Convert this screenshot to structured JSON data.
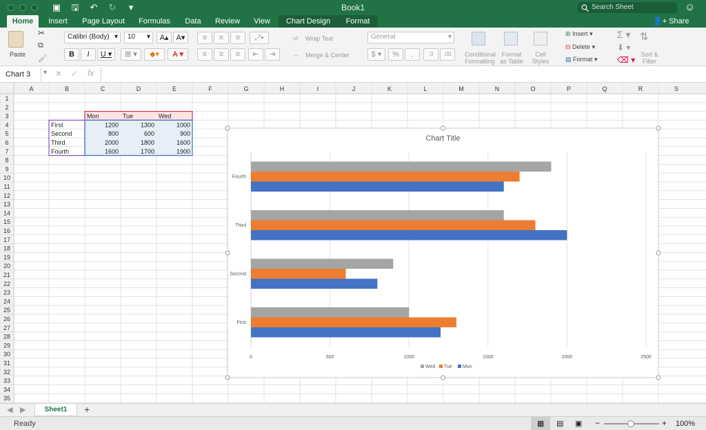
{
  "window": {
    "title": "Book1",
    "search_placeholder": "Search Sheet"
  },
  "tabs": [
    "Home",
    "Insert",
    "Page Layout",
    "Formulas",
    "Data",
    "Review",
    "View",
    "Chart Design",
    "Format"
  ],
  "share_label": "Share",
  "ribbon": {
    "paste": "Paste",
    "font": "Calibri (Body)",
    "size": "10",
    "wrap": "Wrap Text",
    "merge": "Merge & Center",
    "number_format": "General",
    "cond_format": [
      "Conditional",
      "Formatting"
    ],
    "format_table": [
      "Format",
      "as Table"
    ],
    "cell_styles": [
      "Cell",
      "Styles"
    ],
    "insert": "Insert",
    "delete": "Delete",
    "format": "Format",
    "sort": [
      "Sort &",
      "Filter"
    ]
  },
  "name_box": "Chart 3",
  "fx": "fx",
  "columns": [
    "A",
    "B",
    "C",
    "D",
    "E",
    "F",
    "G",
    "H",
    "I",
    "J",
    "K",
    "L",
    "M",
    "N",
    "O",
    "P",
    "Q",
    "R",
    "S"
  ],
  "rows": [
    "1",
    "2",
    "3",
    "4",
    "5",
    "6",
    "7",
    "8",
    "9",
    "10",
    "11",
    "12",
    "13",
    "14",
    "15",
    "16",
    "17",
    "18",
    "19",
    "20",
    "21",
    "22",
    "23",
    "24",
    "25",
    "26",
    "27",
    "28",
    "29",
    "30",
    "31",
    "32",
    "33",
    "34",
    "35"
  ],
  "table": {
    "headers": [
      "Mon",
      "Tue",
      "Wed"
    ],
    "rows": [
      {
        "label": "First",
        "values": [
          "1200",
          "1300",
          "1000"
        ]
      },
      {
        "label": "Second",
        "values": [
          "800",
          "600",
          "900"
        ]
      },
      {
        "label": "Third",
        "values": [
          "2000",
          "1800",
          "1600"
        ]
      },
      {
        "label": "Fourth",
        "values": [
          "1600",
          "1700",
          "1900"
        ]
      }
    ]
  },
  "chart_data": {
    "type": "bar",
    "orientation": "horizontal",
    "title": "Chart Title",
    "categories": [
      "First",
      "Second",
      "Third",
      "Fourth"
    ],
    "series": [
      {
        "name": "Mon",
        "values": [
          1200,
          800,
          2000,
          1600
        ],
        "color": "#4472C4"
      },
      {
        "name": "Tue",
        "values": [
          1300,
          600,
          1800,
          1700
        ],
        "color": "#ED7D31"
      },
      {
        "name": "Wed",
        "values": [
          1000,
          900,
          1600,
          1900
        ],
        "color": "#A5A5A5"
      }
    ],
    "xlim": [
      0,
      2500
    ],
    "xticks": [
      "0",
      "500",
      "1000",
      "1500",
      "2000",
      "2500"
    ],
    "legend_position": "bottom",
    "legend_order": [
      "Wed",
      "Tue",
      "Mon"
    ],
    "grid": true
  },
  "sheet_tab": "Sheet1",
  "add_sheet": "+",
  "status": {
    "left": "Ready",
    "zoom": "100%",
    "minus": "−",
    "plus": "+"
  },
  "colors": {
    "brand": "#217346",
    "grid_line": "#e1e1e1",
    "header_bg": "#f1f1f1"
  }
}
